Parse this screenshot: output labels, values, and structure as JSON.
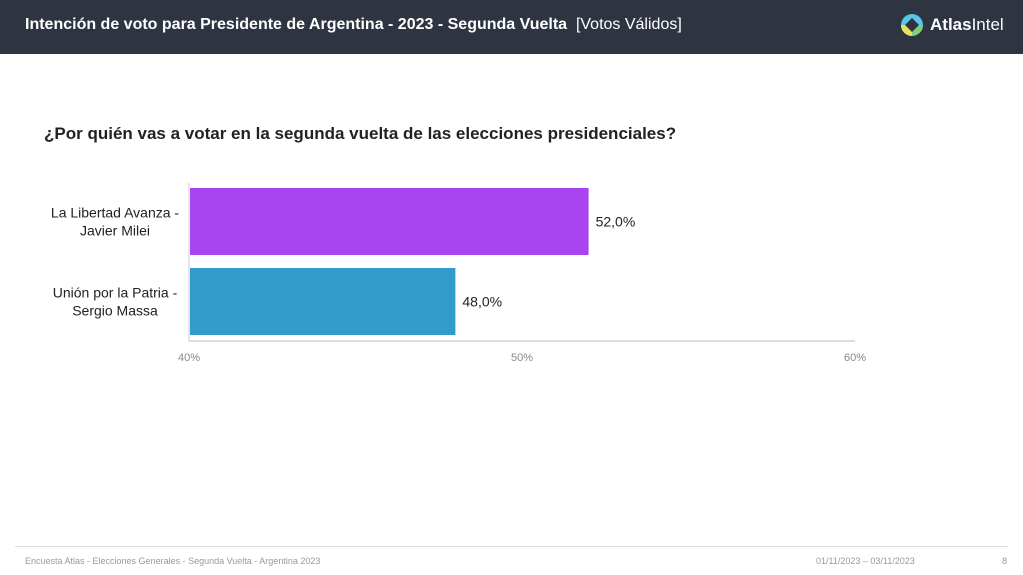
{
  "header": {
    "title": "Intención de voto para Presidente de Argentina - 2023 - Segunda Vuelta",
    "subtitle": "[Votos Válidos]",
    "logo_text": "AtlasIntel",
    "colors": {
      "bg": "#2e3440"
    }
  },
  "chart_data": {
    "type": "bar",
    "orientation": "horizontal",
    "title": "¿Por quién vas a votar en la segunda vuelta de las elecciones presidenciales?",
    "categories": [
      [
        "La Libertad Avanza -",
        "Javier Milei"
      ],
      [
        "Unión por la Patria -",
        "Sergio Massa"
      ]
    ],
    "values": [
      52.0,
      48.0
    ],
    "data_labels": [
      "52,0%",
      "48,0%"
    ],
    "colors": [
      "#a845f0",
      "#339acc"
    ],
    "xlim": [
      40,
      60
    ],
    "xticks": [
      40,
      50,
      60
    ],
    "xtick_labels": [
      "40%",
      "50%",
      "60%"
    ],
    "grid": false
  },
  "footer": {
    "left": "Encuesta Atlas - Elecciones Generales - Segunda Vuelta - Argentina 2023",
    "dates": "01/11/2023 – 03/11/2023",
    "page": "8"
  }
}
